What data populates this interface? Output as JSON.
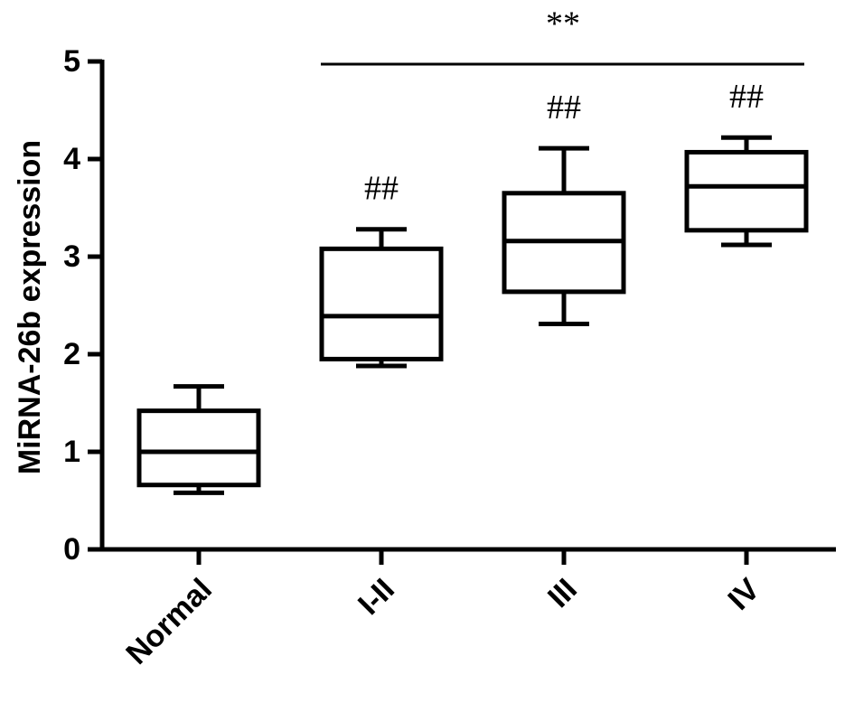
{
  "chart_data": {
    "type": "box",
    "ylabel": "MiRNA-26b expression",
    "categories": [
      "Normal",
      "I-II",
      "III",
      "IV"
    ],
    "boxes": [
      {
        "min": 0.58,
        "q1": 0.66,
        "median": 1.0,
        "q3": 1.42,
        "max": 1.67
      },
      {
        "min": 1.88,
        "q1": 1.95,
        "median": 2.39,
        "q3": 3.08,
        "max": 3.28
      },
      {
        "min": 2.31,
        "q1": 2.64,
        "median": 3.16,
        "q3": 3.65,
        "max": 4.11
      },
      {
        "min": 3.12,
        "q1": 3.27,
        "median": 3.72,
        "q3": 4.07,
        "max": 4.22
      }
    ],
    "group_labels": [
      null,
      "##",
      "##",
      "##"
    ],
    "significance": "**",
    "color": "#000000",
    "ylim": [
      0,
      5
    ],
    "yticks": [
      0,
      1,
      2,
      3,
      4,
      5
    ],
    "grid": false
  }
}
